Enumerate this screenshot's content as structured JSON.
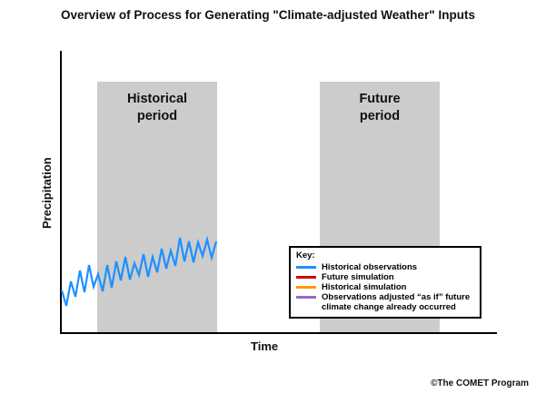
{
  "title": "Overview of Process for Generating \"Climate-adjusted Weather\" Inputs",
  "periods": {
    "historical_line1": "Historical",
    "historical_line2": "period",
    "future_line1": "Future",
    "future_line2": "period"
  },
  "axes": {
    "x_label": "Time",
    "y_label": "Precipitation"
  },
  "key": {
    "title": "Key:",
    "items": [
      {
        "label": "Historical observations",
        "color": "#1e90ff"
      },
      {
        "label": "Future simulation",
        "color": "#d00000"
      },
      {
        "label": "Historical simulation",
        "color": "#ff9900"
      },
      {
        "label": "Observations adjusted “as if” future climate change already occurred",
        "color": "#9966cc"
      }
    ]
  },
  "colors": {
    "period_fill": "#cccccc",
    "observations_line": "#1e90ff"
  },
  "credit": "©The COMET Program"
}
